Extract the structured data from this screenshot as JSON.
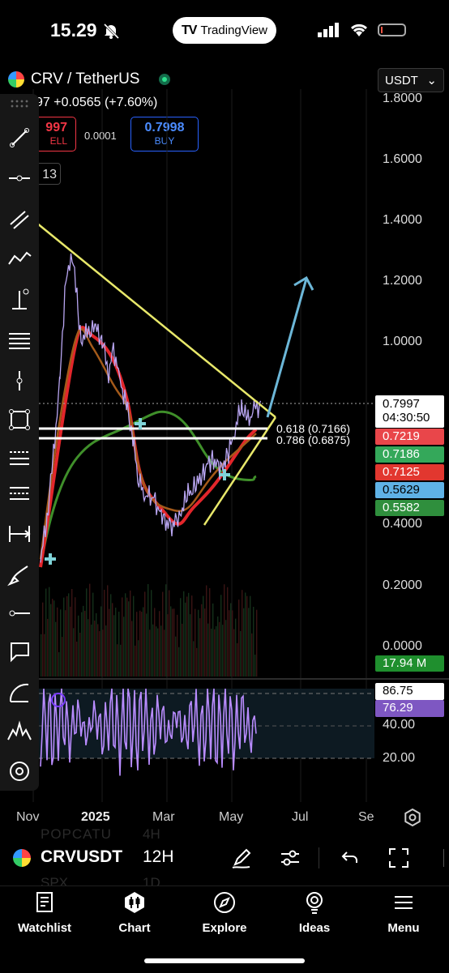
{
  "status_bar": {
    "time": "15.29",
    "pill_brand": "TradingView"
  },
  "header": {
    "symbol_title": "CRV / TetherUS",
    "currency": "USDT",
    "price_change": "97  +0.0565 (+7.60%)",
    "sell_price": "997",
    "sell_label": "ELL",
    "spread": "0.0001",
    "buy_price": "0.7998",
    "buy_label": "BUY",
    "quantity": "13"
  },
  "price_axis": [
    "1.8000",
    "1.6000",
    "1.4000",
    "1.2000",
    "1.0000",
    "0.4000",
    "0.2000",
    "0.0000"
  ],
  "price_tags": [
    {
      "value": "0.7997",
      "sub": "04:30:50",
      "bg": "#ffffff",
      "fg": "#000000"
    },
    {
      "value": "0.7219",
      "bg": "#e9464a",
      "fg": "#ffffff"
    },
    {
      "value": "0.7186",
      "bg": "#34a85a",
      "fg": "#ffffff"
    },
    {
      "value": "0.7125",
      "bg": "#e2372f",
      "fg": "#ffffff"
    },
    {
      "value": "0.5629",
      "bg": "#5fb2e6",
      "fg": "#000000"
    },
    {
      "value": "0.5582",
      "bg": "#2f8f3d",
      "fg": "#ffffff"
    }
  ],
  "volume_tag": "17.94 M",
  "fib_levels": [
    "0.618 (0.7166)",
    "0.786 (0.6875)"
  ],
  "rsi": {
    "value1": "86.75",
    "value2": "76.29",
    "axis": [
      "40.00",
      "20.00"
    ]
  },
  "time_axis": [
    "Nov",
    "2025",
    "Mar",
    "May",
    "Jul",
    "Se"
  ],
  "symbol_bar": {
    "symbol": "CRVUSDT",
    "interval": "12H",
    "ghost_symbol_1": "POPCATU",
    "ghost_interval_1": "4H",
    "ghost_symbol_2": "SPX",
    "ghost_interval_2": "1D"
  },
  "tabs": [
    {
      "label": "Watchlist",
      "icon": "book-icon"
    },
    {
      "label": "Chart",
      "icon": "candles-icon"
    },
    {
      "label": "Explore",
      "icon": "compass-icon"
    },
    {
      "label": "Ideas",
      "icon": "lightbulb-icon"
    },
    {
      "label": "Menu",
      "icon": "hamburger-icon"
    }
  ],
  "colors": {
    "price": "#b9a6f2",
    "ema_red": "#e3262b",
    "ema_orange": "#a45a1a",
    "ma_green": "#3f8f2a",
    "triangle": "#e8e86a",
    "arrow": "#6cb7d8",
    "rsi": "#b98cff"
  }
}
